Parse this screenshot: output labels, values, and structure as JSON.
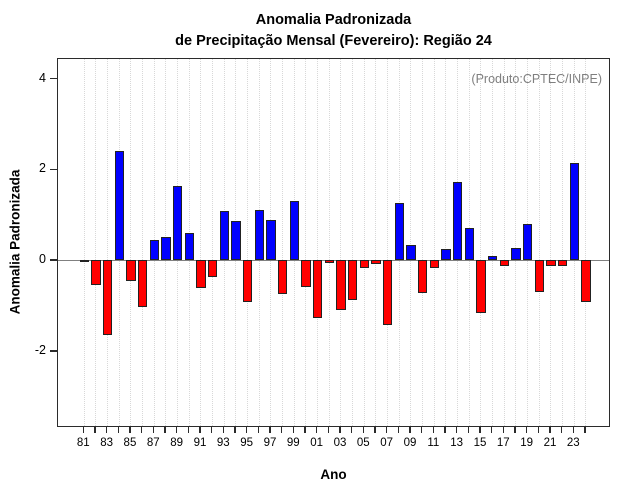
{
  "title": {
    "line1": "Anomalia Padronizada",
    "line2": "de Precipitação Mensal (Fevereiro): Região 24"
  },
  "annotation": "(Produto:CPTEC/INPE)",
  "chart_data": {
    "type": "bar",
    "title": "Anomalia Padronizada de Precipitação Mensal (Fevereiro): Região 24",
    "xlabel": "Ano",
    "ylabel": "Anomalia Padronizada",
    "ylim": [
      -3.65,
      4.43
    ],
    "yticks": [
      "4",
      "2",
      "0",
      "-2"
    ],
    "ytick_values": [
      4,
      2,
      0,
      -2
    ],
    "grid": "vertical-dotted",
    "legend": "none",
    "categories": [
      "81",
      "82",
      "83",
      "84",
      "85",
      "86",
      "87",
      "88",
      "89",
      "90",
      "91",
      "92",
      "93",
      "94",
      "95",
      "96",
      "97",
      "98",
      "99",
      "00",
      "01",
      "02",
      "03",
      "04",
      "05",
      "06",
      "07",
      "08",
      "09",
      "10",
      "11",
      "12",
      "13",
      "14",
      "15",
      "16",
      "17",
      "18",
      "19",
      "20",
      "21",
      "22",
      "23",
      "24"
    ],
    "values": [
      -0.05,
      -0.55,
      -1.65,
      2.4,
      -0.45,
      -1.03,
      0.45,
      0.52,
      1.63,
      0.59,
      -0.62,
      -0.36,
      1.09,
      0.87,
      -0.92,
      1.11,
      0.89,
      -0.75,
      1.31,
      -0.6,
      -1.28,
      -0.07,
      -1.1,
      -0.88,
      -0.18,
      -0.09,
      -1.42,
      1.27,
      0.34,
      -0.73,
      -0.18,
      0.24,
      1.73,
      0.72,
      -1.16,
      0.1,
      -0.12,
      0.27,
      0.79,
      -0.7,
      -0.12,
      -0.13,
      2.14,
      -0.92
    ],
    "xtick_labels": [
      "81",
      "83",
      "85",
      "87",
      "89",
      "91",
      "93",
      "95",
      "97",
      "99",
      "01",
      "03",
      "05",
      "07",
      "09",
      "11",
      "13",
      "15",
      "17",
      "19",
      "21",
      "23"
    ],
    "colors": {
      "positive": "#0000ff",
      "negative": "#ff0000",
      "bar_border": "#222222",
      "zero_line": "#808080",
      "grid": "#d8d8d8",
      "axis": "#2b2b2b",
      "annotation_text": "#7f7f7f",
      "text": "#000000"
    }
  }
}
